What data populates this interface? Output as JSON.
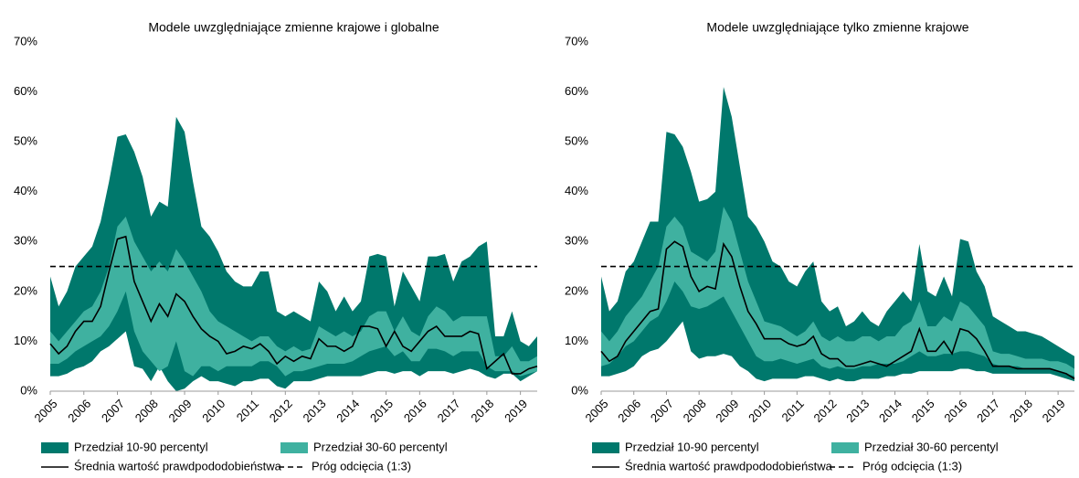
{
  "chart_data": [
    {
      "type": "band",
      "title": "Modele uwzględniające zmienne krajowe i globalne",
      "x": [
        2005,
        2005.25,
        2005.5,
        2005.75,
        2006,
        2006.25,
        2006.5,
        2006.75,
        2007,
        2007.25,
        2007.5,
        2007.75,
        2008,
        2008.25,
        2008.5,
        2008.75,
        2009,
        2009.25,
        2009.5,
        2009.75,
        2010,
        2010.25,
        2010.5,
        2010.75,
        2011,
        2011.25,
        2011.5,
        2011.75,
        2012,
        2012.25,
        2012.5,
        2012.75,
        2013,
        2013.25,
        2013.5,
        2013.75,
        2014,
        2014.25,
        2014.5,
        2014.75,
        2015,
        2015.25,
        2015.5,
        2015.75,
        2016,
        2016.25,
        2016.5,
        2016.75,
        2017,
        2017.25,
        2017.5,
        2017.75,
        2018,
        2018.25,
        2018.5,
        2018.75,
        2019,
        2019.25,
        2019.5
      ],
      "xlim": [
        2005,
        2019.5
      ],
      "xticks": [
        2005,
        2006,
        2007,
        2008,
        2009,
        2010,
        2011,
        2012,
        2013,
        2014,
        2015,
        2016,
        2017,
        2018,
        2019
      ],
      "ylim": [
        0,
        70
      ],
      "yticks": [
        {
          "value": 0,
          "label": "0%"
        },
        {
          "value": 10,
          "label": "10%"
        },
        {
          "value": 20,
          "label": "20%"
        },
        {
          "value": 30,
          "label": "30%"
        },
        {
          "value": 40,
          "label": "40%"
        },
        {
          "value": 50,
          "label": "50%"
        },
        {
          "value": 60,
          "label": "60%"
        },
        {
          "value": 70,
          "label": "70%"
        }
      ],
      "series": [
        {
          "name": "Przedział 10-90 percentyl",
          "kind": "band",
          "color": "#00786c",
          "low": [
            3,
            3,
            3.5,
            4.5,
            5,
            6,
            8,
            9,
            10.5,
            12,
            5,
            4.5,
            2,
            5,
            2,
            0,
            0.5,
            2,
            3,
            2,
            2,
            1.5,
            1,
            2,
            2,
            2.5,
            2.5,
            1,
            0.5,
            2,
            2,
            2,
            2.5,
            3,
            3,
            3,
            3,
            3,
            3.5,
            4,
            4,
            3.5,
            4,
            4,
            3,
            4,
            4,
            4,
            3.5,
            4,
            4.5,
            4,
            3,
            2.5,
            3.5,
            3.5,
            2,
            3,
            4
          ],
          "high": [
            23,
            17,
            20,
            25,
            27,
            29,
            34,
            42,
            51,
            51.5,
            48,
            43,
            35,
            38,
            37,
            55,
            52,
            42,
            33,
            31,
            28,
            24,
            22,
            21,
            21,
            24,
            24,
            16,
            15,
            16,
            15,
            14,
            22,
            20,
            16,
            19,
            16,
            18,
            27,
            27.5,
            27,
            17,
            24,
            21,
            18,
            27,
            27,
            27.5,
            22,
            26,
            27,
            29,
            30,
            11,
            11,
            16,
            10,
            9,
            11
          ]
        },
        {
          "name": "Przedział 30-60 percentyl",
          "kind": "band",
          "color": "#3fb1a0",
          "low": [
            5.5,
            5.5,
            6.5,
            8,
            9,
            10,
            11,
            13,
            16,
            20,
            12,
            8,
            6,
            4,
            5,
            10,
            4,
            3,
            5,
            5,
            4,
            5,
            5,
            5,
            5,
            6,
            6,
            5,
            3,
            4,
            4,
            4.5,
            5,
            5.5,
            5.5,
            5.5,
            6,
            7,
            8,
            8.5,
            9,
            7,
            8,
            6,
            6,
            8.5,
            8.5,
            8,
            7,
            8,
            8,
            8,
            5,
            4,
            4,
            4,
            3,
            3.5,
            4
          ],
          "high": [
            12,
            10,
            12,
            14,
            16,
            17,
            20,
            25,
            33,
            35,
            30,
            27,
            24,
            26,
            24,
            28.5,
            26,
            23,
            20,
            16,
            14,
            13,
            12,
            11,
            10,
            11,
            11,
            9,
            8,
            9,
            8,
            8.5,
            13,
            12,
            11,
            12,
            11,
            12,
            15,
            16,
            16,
            12,
            15,
            12,
            11,
            15,
            17,
            16,
            14,
            15,
            15,
            15,
            15,
            7,
            7,
            9,
            6,
            6,
            7
          ]
        },
        {
          "name": "Średnia wartość prawdpododobieństwa",
          "kind": "line",
          "color": "#000000",
          "values": [
            9.5,
            7.5,
            9,
            12,
            14,
            14,
            17,
            24,
            30.5,
            31,
            22,
            18,
            14,
            17.5,
            15,
            19.5,
            18,
            15,
            12.5,
            11,
            10,
            7.5,
            8,
            9,
            8.5,
            9.5,
            8,
            5.5,
            7,
            6,
            7,
            6.5,
            10.5,
            9,
            9,
            8,
            9,
            13,
            13,
            12.5,
            9,
            12,
            9,
            8,
            10,
            12,
            13,
            11,
            11,
            11,
            12,
            11.5,
            4.5,
            6,
            7.5,
            3.5,
            3.5,
            4.5,
            5
          ]
        },
        {
          "name": "Próg odcięcia (1:3)",
          "kind": "threshold",
          "color": "#000000",
          "value": 25
        }
      ]
    },
    {
      "type": "band",
      "title": "Modele uwzględniające tylko zmienne krajowe",
      "x": [
        2005,
        2005.25,
        2005.5,
        2005.75,
        2006,
        2006.25,
        2006.5,
        2006.75,
        2007,
        2007.25,
        2007.5,
        2007.75,
        2008,
        2008.25,
        2008.5,
        2008.75,
        2009,
        2009.25,
        2009.5,
        2009.75,
        2010,
        2010.25,
        2010.5,
        2010.75,
        2011,
        2011.25,
        2011.5,
        2011.75,
        2012,
        2012.25,
        2012.5,
        2012.75,
        2013,
        2013.25,
        2013.5,
        2013.75,
        2014,
        2014.25,
        2014.5,
        2014.75,
        2015,
        2015.25,
        2015.5,
        2015.75,
        2016,
        2016.25,
        2016.5,
        2016.75,
        2017,
        2017.25,
        2017.5,
        2017.75,
        2018,
        2018.25,
        2018.5,
        2018.75,
        2019,
        2019.25,
        2019.5
      ],
      "xlim": [
        2005,
        2019.5
      ],
      "xticks": [
        2005,
        2006,
        2007,
        2008,
        2009,
        2010,
        2011,
        2012,
        2013,
        2014,
        2015,
        2016,
        2017,
        2018,
        2019
      ],
      "ylim": [
        0,
        70
      ],
      "yticks": [
        {
          "value": 0,
          "label": "0%"
        },
        {
          "value": 10,
          "label": "10%"
        },
        {
          "value": 20,
          "label": "20%"
        },
        {
          "value": 30,
          "label": "30%"
        },
        {
          "value": 40,
          "label": "40%"
        },
        {
          "value": 50,
          "label": "50%"
        },
        {
          "value": 60,
          "label": "60%"
        },
        {
          "value": 70,
          "label": "70%"
        }
      ],
      "series": [
        {
          "name": "Przedział 10-90 percentyl",
          "kind": "band",
          "color": "#00786c",
          "low": [
            3,
            3,
            3.5,
            4,
            5,
            7,
            8,
            8.5,
            10,
            12,
            14,
            8,
            6.5,
            7,
            7,
            7.5,
            7,
            5,
            4,
            2.5,
            2,
            2.5,
            2.5,
            2.5,
            2.5,
            3,
            3,
            2.5,
            2,
            2.5,
            2,
            2,
            2.5,
            2.5,
            2.5,
            3,
            3,
            3.5,
            3.5,
            4,
            4,
            4,
            4,
            4,
            4.5,
            4.5,
            4,
            4,
            3.5,
            3.5,
            3.5,
            3.5,
            3.5,
            3.5,
            3.5,
            3.5,
            3,
            2.5,
            2
          ],
          "high": [
            23,
            16,
            18,
            24,
            26,
            30,
            34,
            34,
            52,
            51.5,
            49,
            44,
            38,
            38.5,
            40,
            61,
            55,
            45,
            35,
            33,
            30,
            26,
            25,
            22,
            21,
            24,
            26,
            18,
            16,
            17,
            13,
            14,
            16,
            14,
            13,
            16,
            18,
            20,
            18,
            29.5,
            20,
            19,
            23,
            19,
            30.5,
            30,
            24,
            21,
            15,
            14,
            13,
            12,
            12,
            11.5,
            11,
            10,
            9,
            8,
            7
          ]
        },
        {
          "name": "Przedział 30-60 percentyl",
          "kind": "band",
          "color": "#3fb1a0",
          "low": [
            5,
            5.5,
            7,
            9,
            10,
            12,
            14,
            15,
            18,
            22,
            20,
            17,
            16.5,
            17,
            18,
            19,
            16,
            13,
            10,
            7,
            6,
            6,
            6.5,
            6,
            5.5,
            6,
            6.5,
            5,
            4.5,
            5,
            4.5,
            4.5,
            5,
            5,
            5.5,
            5.5,
            5.5,
            6,
            7,
            8,
            7,
            7,
            7.5,
            7.5,
            8,
            8,
            7.5,
            7,
            5.5,
            5,
            5,
            5,
            4.5,
            4.5,
            4.5,
            4.5,
            4,
            3.5,
            3
          ],
          "high": [
            12,
            10,
            12,
            15,
            17,
            19,
            22,
            25,
            33,
            35,
            33,
            28,
            27,
            26,
            28,
            37,
            34,
            28,
            22,
            18,
            14,
            13.5,
            13,
            12,
            11,
            12,
            14,
            11,
            10,
            11,
            10,
            10,
            11,
            11,
            10,
            11,
            11,
            13,
            14,
            18,
            13,
            13,
            15,
            14,
            18,
            17,
            15,
            13,
            8,
            7.5,
            7.5,
            7,
            6.5,
            6.5,
            6.5,
            6,
            6,
            5.5,
            4.5
          ]
        },
        {
          "name": "Średnia wartość prawdpododobieństwa",
          "kind": "line",
          "color": "#000000",
          "values": [
            8,
            6,
            7,
            10,
            12,
            14,
            16,
            16.5,
            28.5,
            30,
            29,
            23,
            20,
            21,
            20.5,
            29.5,
            27,
            21,
            16,
            13.5,
            10.5,
            10.5,
            10.5,
            9.5,
            9,
            9.5,
            11,
            7.5,
            6.5,
            6.5,
            5,
            5,
            5.5,
            6,
            5.5,
            5,
            6,
            7,
            8,
            12.5,
            8,
            8,
            10,
            7.5,
            12.5,
            12,
            10.5,
            8,
            5,
            5,
            5,
            4.5,
            4.5,
            4.5,
            4.5,
            4.5,
            4,
            3.5,
            2.5
          ]
        },
        {
          "name": "Próg odcięcia (1:3)",
          "kind": "threshold",
          "color": "#000000",
          "value": 25
        }
      ]
    }
  ]
}
